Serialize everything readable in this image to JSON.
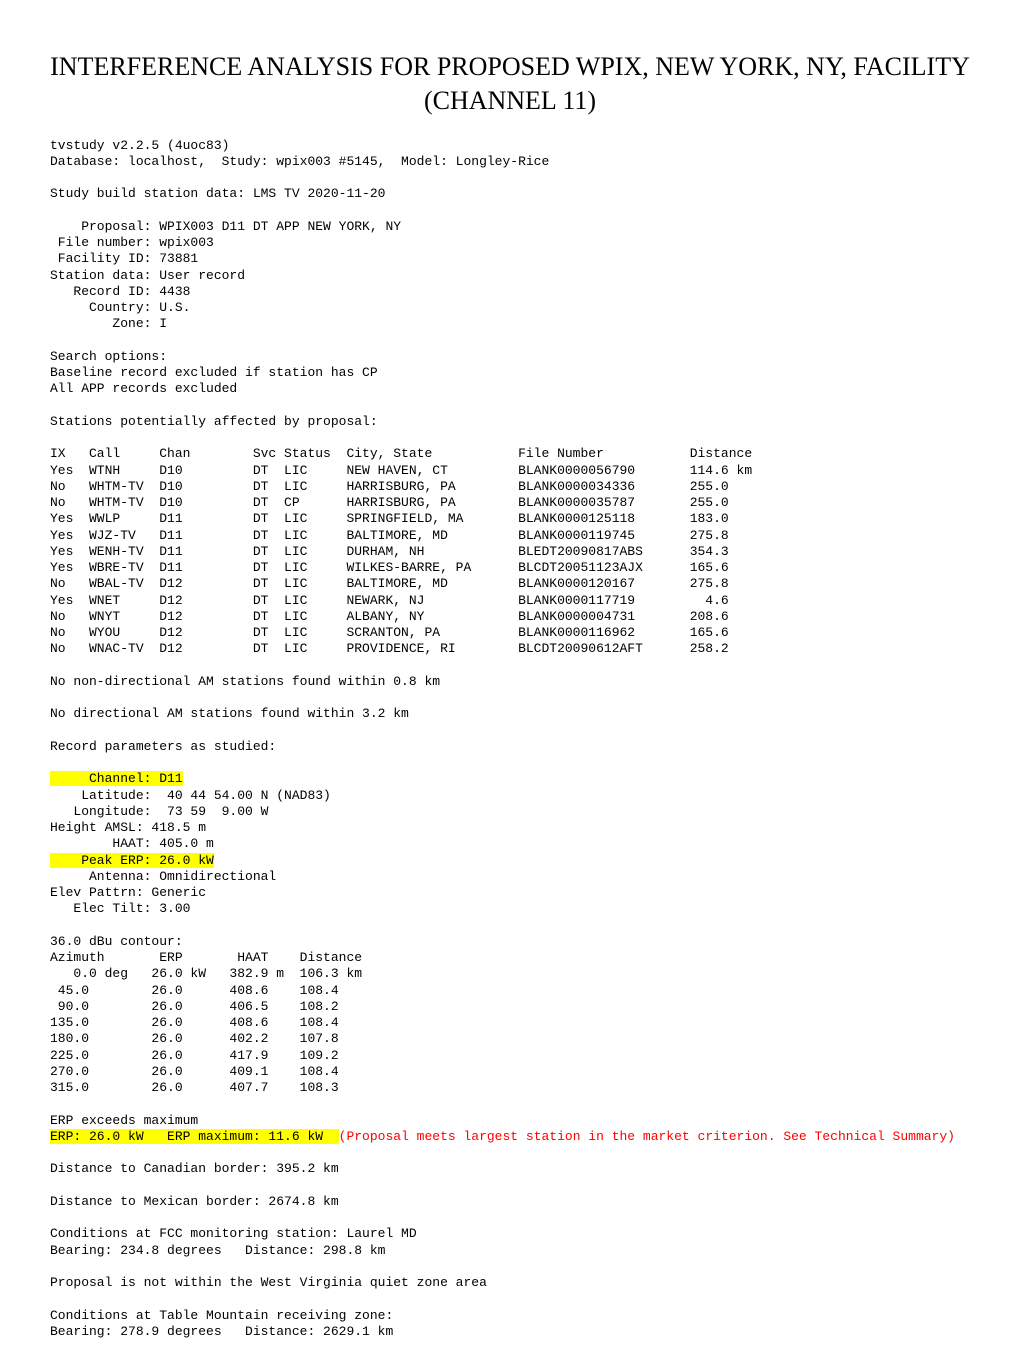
{
  "title": "INTERFERENCE ANALYSIS FOR PROPOSED WPIX, NEW YORK, NY, FACILITY (CHANNEL 11)",
  "header": {
    "version": "tvstudy v2.2.5 (4uoc83)",
    "database": "Database: localhost,  Study: wpix003 #5145,  Model: Longley-Rice",
    "build": "Study build station data: LMS TV 2020-11-20"
  },
  "proposal": {
    "label": "    Proposal: WPIX003 D11 DT APP NEW YORK, NY",
    "file": " File number: wpix003",
    "facility": " Facility ID: 73881",
    "station": "Station data: User record",
    "record": "   Record ID: 4438",
    "country": "     Country: U.S.",
    "zone": "        Zone: I"
  },
  "search": {
    "header": "Search options:",
    "baseline": "Baseline record excluded if station has CP",
    "app": "All APP records excluded"
  },
  "stations": {
    "header": "Stations potentially affected by proposal:",
    "cols": "IX   Call     Chan        Svc Status  City, State           File Number           Distance",
    "rows": [
      "Yes  WTNH     D10         DT  LIC     NEW HAVEN, CT         BLANK0000056790       114.6 km",
      "No   WHTM-TV  D10         DT  LIC     HARRISBURG, PA        BLANK0000034336       255.0",
      "No   WHTM-TV  D10         DT  CP      HARRISBURG, PA        BLANK0000035787       255.0",
      "Yes  WWLP     D11         DT  LIC     SPRINGFIELD, MA       BLANK0000125118       183.0",
      "Yes  WJZ-TV   D11         DT  LIC     BALTIMORE, MD         BLANK0000119745       275.8",
      "Yes  WENH-TV  D11         DT  LIC     DURHAM, NH            BLEDT20090817ABS      354.3",
      "Yes  WBRE-TV  D11         DT  LIC     WILKES-BARRE, PA      BLCDT20051123AJX      165.6",
      "No   WBAL-TV  D12         DT  LIC     BALTIMORE, MD         BLANK0000120167       275.8",
      "Yes  WNET     D12         DT  LIC     NEWARK, NJ            BLANK0000117719         4.6",
      "No   WNYT     D12         DT  LIC     ALBANY, NY            BLANK0000004731       208.6",
      "No   WYOU     D12         DT  LIC     SCRANTON, PA          BLANK0000116962       165.6",
      "No   WNAC-TV  D12         DT  LIC     PROVIDENCE, RI        BLCDT20090612AFT      258.2"
    ]
  },
  "am": {
    "nondir": "No non-directional AM stations found within 0.8 km",
    "dir": "No directional AM stations found within 3.2 km"
  },
  "params": {
    "header": "Record parameters as studied:",
    "channel_lbl": "     Channel: D11",
    "lat": "    Latitude:  40 44 54.00 N (NAD83)",
    "lon": "   Longitude:  73 59  9.00 W",
    "amsl": "Height AMSL: 418.5 m",
    "haat": "        HAAT: 405.0 m",
    "erp_lbl": "    Peak ERP: 26.0 kW",
    "ant": "     Antenna: Omnidirectional",
    "elev": "Elev Pattrn: Generic",
    "tilt": "   Elec Tilt: 3.00"
  },
  "contour": {
    "header": "36.0 dBu contour:",
    "cols": "Azimuth       ERP       HAAT    Distance",
    "rows": [
      "   0.0 deg   26.0 kW   382.9 m  106.3 km",
      " 45.0        26.0      408.6    108.4",
      " 90.0        26.0      406.5    108.2",
      "135.0        26.0      408.6    108.4",
      "180.0        26.0      402.2    107.8",
      "225.0        26.0      417.9    109.2",
      "270.0        26.0      409.1    108.4",
      "315.0        26.0      407.7    108.3"
    ]
  },
  "erp": {
    "exceeds": "ERP exceeds maximum",
    "line_hl": "ERP: 26.0 kW   ERP maximum: 11.6 kW  ",
    "line_red": "(Proposal meets largest station in the market criterion. See Technical Summary)"
  },
  "borders": {
    "can": "Distance to Canadian border: 395.2 km",
    "mex": "Distance to Mexican border: 2674.8 km"
  },
  "fcc": {
    "hdr": "Conditions at FCC monitoring station: Laurel MD",
    "br": "Bearing: 234.8 degrees   Distance: 298.8 km"
  },
  "wv": "Proposal is not within the West Virginia quiet zone area",
  "tm": {
    "hdr": "Conditions at Table Mountain receiving zone:",
    "br": "Bearing: 278.9 degrees   Distance: 2629.1 km"
  }
}
